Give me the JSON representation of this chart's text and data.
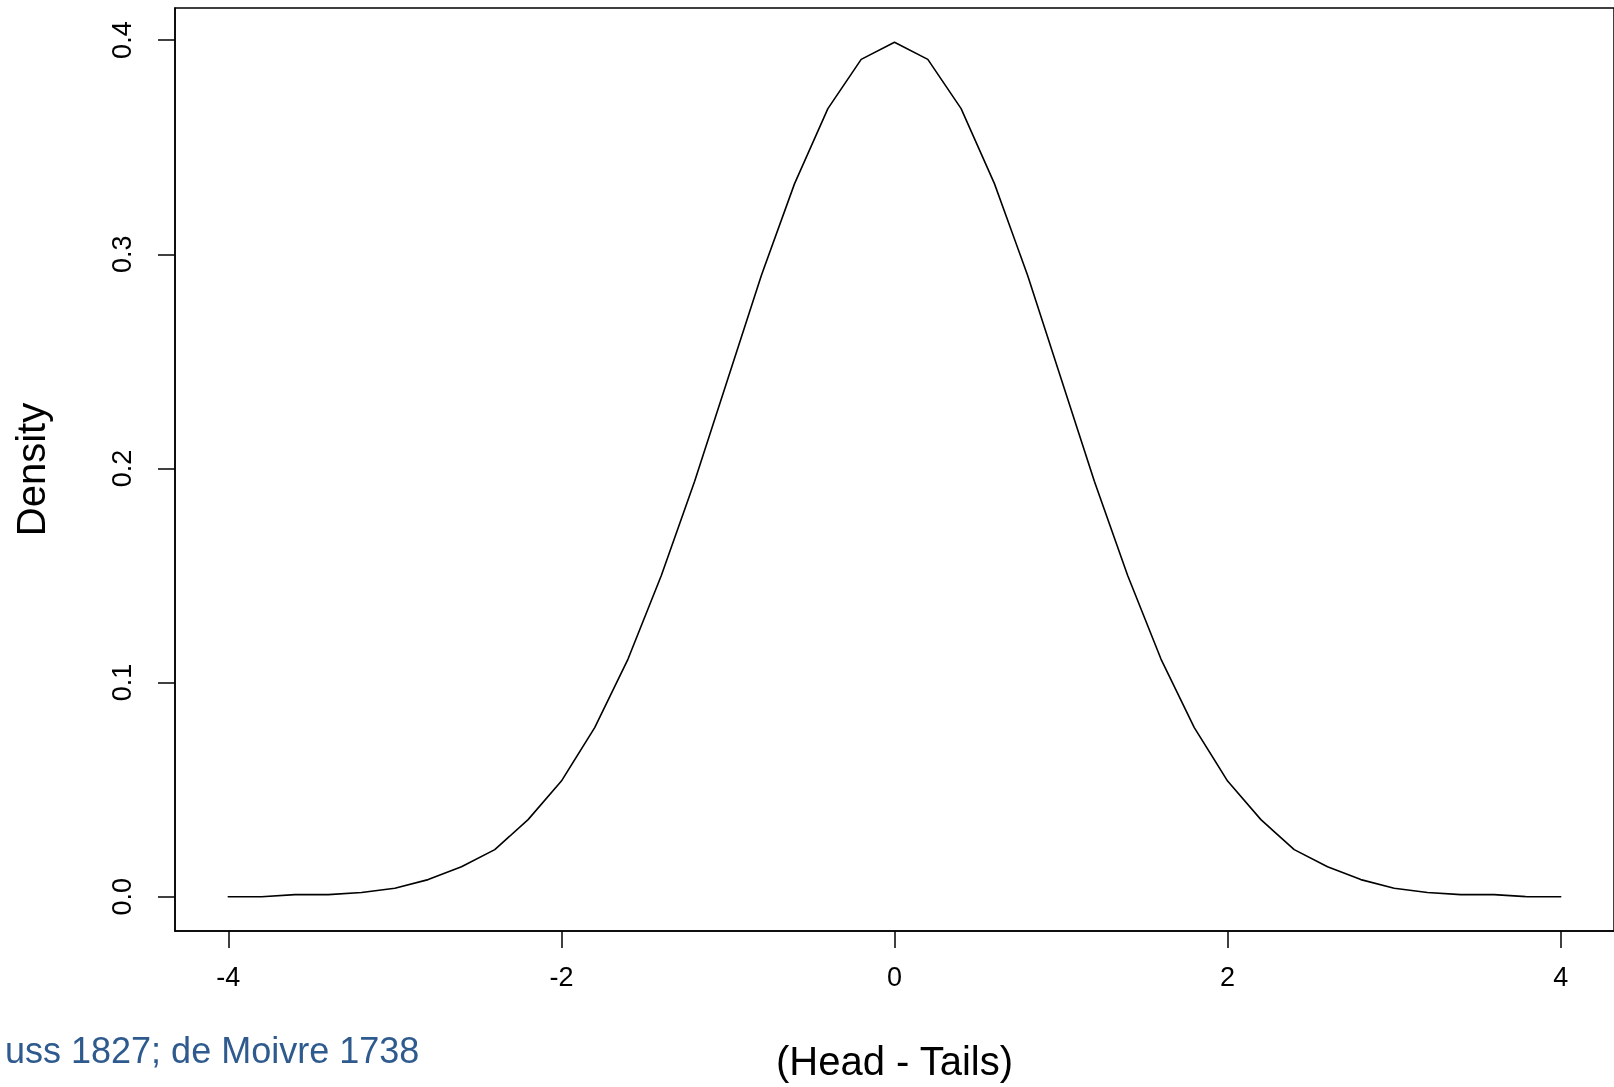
{
  "chart_data": {
    "type": "line",
    "xlabel": "(Head - Tails)",
    "ylabel": "Density",
    "annotations": [
      "uss 1827; de Moivre 1738"
    ],
    "x": [
      -4,
      -3.8,
      -3.6,
      -3.4,
      -3.2,
      -3,
      -2.8,
      -2.6,
      -2.4,
      -2.2,
      -2,
      -1.8,
      -1.6,
      -1.4,
      -1.2,
      -1,
      -0.8,
      -0.6,
      -0.4,
      -0.2,
      0,
      0.2,
      0.4,
      0.6,
      0.8,
      1,
      1.2,
      1.4,
      1.6,
      1.8,
      2,
      2.2,
      2.4,
      2.6,
      2.8,
      3,
      3.2,
      3.4,
      3.6,
      3.8,
      4
    ],
    "series": [
      {
        "color": "#000000",
        "values": [
          0.0,
          0.0,
          0.001,
          0.001,
          0.002,
          0.004,
          0.008,
          0.014,
          0.022,
          0.036,
          0.054,
          0.079,
          0.111,
          0.15,
          0.194,
          0.242,
          0.29,
          0.333,
          0.368,
          0.391,
          0.399,
          0.391,
          0.368,
          0.333,
          0.29,
          0.242,
          0.194,
          0.15,
          0.111,
          0.079,
          0.054,
          0.036,
          0.022,
          0.014,
          0.008,
          0.004,
          0.002,
          0.001,
          0.001,
          0.0,
          0.0
        ]
      }
    ],
    "xlim": [
      -4.32,
      4.32
    ],
    "xticks": [
      -4,
      -2,
      0,
      2,
      4
    ],
    "ylim": [
      -0.016,
      0.415
    ],
    "yticks": [
      {
        "value": 0,
        "label": "0.0"
      },
      0.1,
      0.2,
      0.3,
      0.4
    ],
    "marker": "none",
    "line_style": "solid"
  }
}
